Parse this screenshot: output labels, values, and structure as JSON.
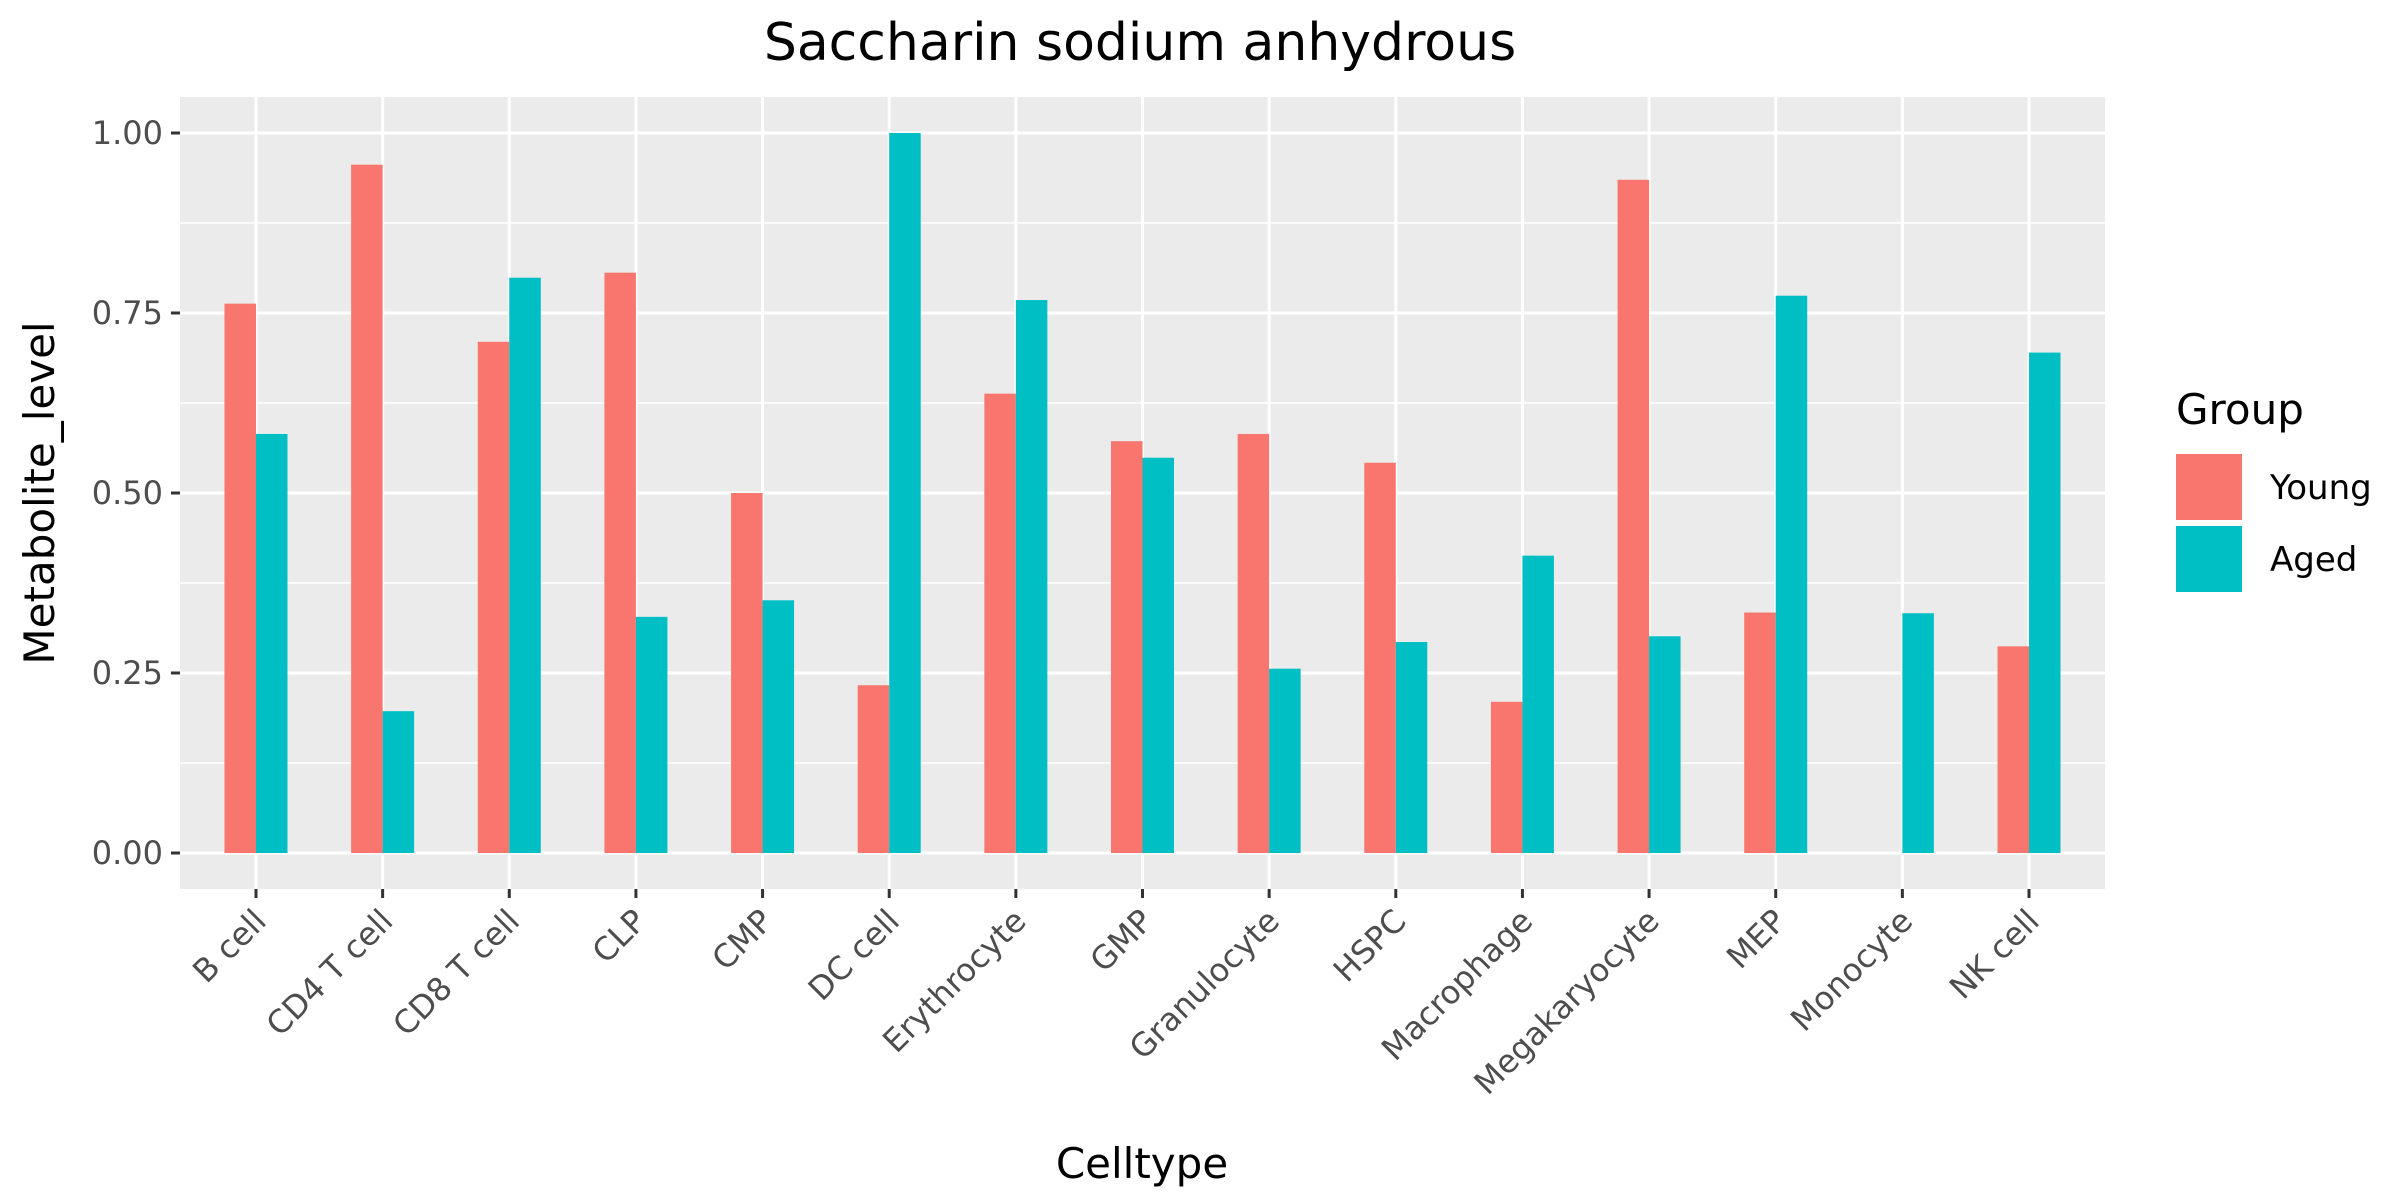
{
  "chart_data": {
    "type": "bar",
    "title": "Saccharin sodium anhydrous",
    "xlabel": "Celltype",
    "ylabel": "Metabolite_level",
    "ylim": [
      -0.05,
      1.05
    ],
    "yticks": [
      0.0,
      0.25,
      0.5,
      0.75,
      1.0
    ],
    "ytick_labels": [
      "0.00",
      "0.25",
      "0.50",
      "0.75",
      "1.00"
    ],
    "grid": true,
    "legend_position": "right",
    "legend_title": "Group",
    "categories": [
      "B cell",
      "CD4 T cell",
      "CD8 T cell",
      "CLP",
      "CMP",
      "DC cell",
      "Erythrocyte",
      "GMP",
      "Granulocyte",
      "HSPC",
      "Macrophage",
      "Megakaryocyte",
      "MEP",
      "Monocyte",
      "NK cell"
    ],
    "series": [
      {
        "name": "Young",
        "color": "#F8766D",
        "values": [
          0.763,
          0.956,
          0.71,
          0.806,
          0.5,
          0.233,
          0.638,
          0.572,
          0.582,
          0.542,
          0.21,
          0.935,
          0.334,
          0.0,
          0.287
        ]
      },
      {
        "name": "Aged",
        "color": "#00BFC4",
        "values": [
          0.582,
          0.197,
          0.799,
          0.328,
          0.351,
          1.0,
          0.768,
          0.549,
          0.256,
          0.293,
          0.413,
          0.301,
          0.774,
          0.333,
          0.695
        ]
      }
    ]
  }
}
